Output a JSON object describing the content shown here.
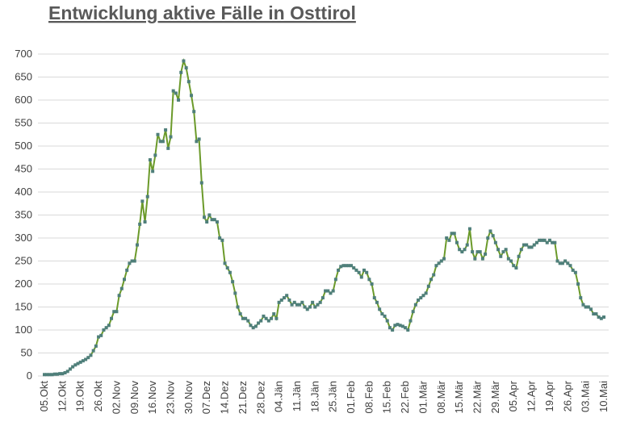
{
  "chart_data": {
    "type": "line",
    "title": "Entwicklung aktive Fälle in Osttirol",
    "categories": [
      "05.Okt",
      null,
      null,
      null,
      null,
      null,
      null,
      "12.Okt",
      null,
      null,
      null,
      null,
      null,
      null,
      "19.Okt",
      null,
      null,
      null,
      null,
      null,
      null,
      "26.Okt",
      null,
      null,
      null,
      null,
      null,
      null,
      "02.Nov",
      null,
      null,
      null,
      null,
      null,
      null,
      "09.Nov",
      null,
      null,
      null,
      null,
      null,
      null,
      "16.Nov",
      null,
      null,
      null,
      null,
      null,
      null,
      "23.Nov",
      null,
      null,
      null,
      null,
      null,
      null,
      "30.Nov",
      null,
      null,
      null,
      null,
      null,
      null,
      "07.Dez",
      null,
      null,
      null,
      null,
      null,
      null,
      "14.Dez",
      null,
      null,
      null,
      null,
      null,
      null,
      "21.Dez",
      null,
      null,
      null,
      null,
      null,
      null,
      "28.Dez",
      null,
      null,
      null,
      null,
      null,
      null,
      "04.Jän",
      null,
      null,
      null,
      null,
      null,
      null,
      "11.Jän",
      null,
      null,
      null,
      null,
      null,
      null,
      "18.Jän",
      null,
      null,
      null,
      null,
      null,
      null,
      "25.Jän",
      null,
      null,
      null,
      null,
      null,
      null,
      "01.Feb",
      null,
      null,
      null,
      null,
      null,
      null,
      "08.Feb",
      null,
      null,
      null,
      null,
      null,
      null,
      "15.Feb",
      null,
      null,
      null,
      null,
      null,
      null,
      "22.Feb",
      null,
      null,
      null,
      null,
      null,
      null,
      "01.Mär",
      null,
      null,
      null,
      null,
      null,
      null,
      "08.Mär",
      null,
      null,
      null,
      null,
      null,
      null,
      "15.Mär",
      null,
      null,
      null,
      null,
      null,
      null,
      "22.Mär",
      null,
      null,
      null,
      null,
      null,
      null,
      "29.Mär",
      null,
      null,
      null,
      null,
      null,
      null,
      "05.Apr",
      null,
      null,
      null,
      null,
      null,
      null,
      "12.Apr",
      null,
      null,
      null,
      null,
      null,
      null,
      "19.Apr",
      null,
      null,
      null,
      null,
      null,
      null,
      "26.Apr",
      null,
      null,
      null,
      null,
      null,
      null,
      "03.Mai",
      null,
      null,
      null,
      null,
      null,
      null,
      "10.Mai"
    ],
    "values": [
      3,
      3,
      3,
      3,
      4,
      4,
      5,
      5,
      7,
      10,
      15,
      20,
      24,
      27,
      30,
      33,
      36,
      40,
      45,
      55,
      65,
      85,
      88,
      100,
      105,
      110,
      125,
      140,
      140,
      175,
      190,
      210,
      230,
      245,
      250,
      250,
      285,
      330,
      380,
      335,
      390,
      470,
      445,
      480,
      525,
      510,
      510,
      535,
      495,
      520,
      620,
      615,
      600,
      660,
      685,
      670,
      640,
      610,
      575,
      510,
      515,
      420,
      345,
      335,
      350,
      340,
      340,
      335,
      300,
      295,
      245,
      235,
      225,
      205,
      180,
      150,
      135,
      125,
      125,
      120,
      110,
      105,
      108,
      115,
      120,
      130,
      125,
      120,
      125,
      135,
      125,
      160,
      165,
      170,
      175,
      165,
      155,
      160,
      155,
      155,
      160,
      150,
      145,
      150,
      160,
      150,
      155,
      160,
      170,
      185,
      185,
      180,
      185,
      210,
      230,
      238,
      240,
      240,
      240,
      240,
      235,
      230,
      225,
      215,
      230,
      225,
      210,
      200,
      170,
      160,
      145,
      135,
      130,
      120,
      105,
      100,
      110,
      112,
      110,
      108,
      105,
      100,
      120,
      140,
      155,
      165,
      170,
      175,
      180,
      195,
      210,
      220,
      240,
      245,
      250,
      255,
      300,
      295,
      310,
      310,
      290,
      275,
      270,
      275,
      285,
      320,
      270,
      255,
      270,
      270,
      255,
      265,
      300,
      315,
      305,
      290,
      275,
      260,
      270,
      275,
      255,
      250,
      240,
      235,
      260,
      275,
      285,
      285,
      280,
      280,
      285,
      290,
      295,
      295,
      295,
      290,
      295,
      290,
      290,
      250,
      245,
      245,
      250,
      245,
      240,
      230,
      225,
      200,
      170,
      155,
      150,
      150,
      145,
      135,
      135,
      128,
      125,
      128
    ],
    "color": "#6b9a2a",
    "marker_color": "#4f7f7a",
    "ylim": [
      0,
      700
    ],
    "yticks": [
      0,
      50,
      100,
      150,
      200,
      250,
      300,
      350,
      400,
      450,
      500,
      550,
      600,
      650,
      700
    ],
    "grid": true
  }
}
